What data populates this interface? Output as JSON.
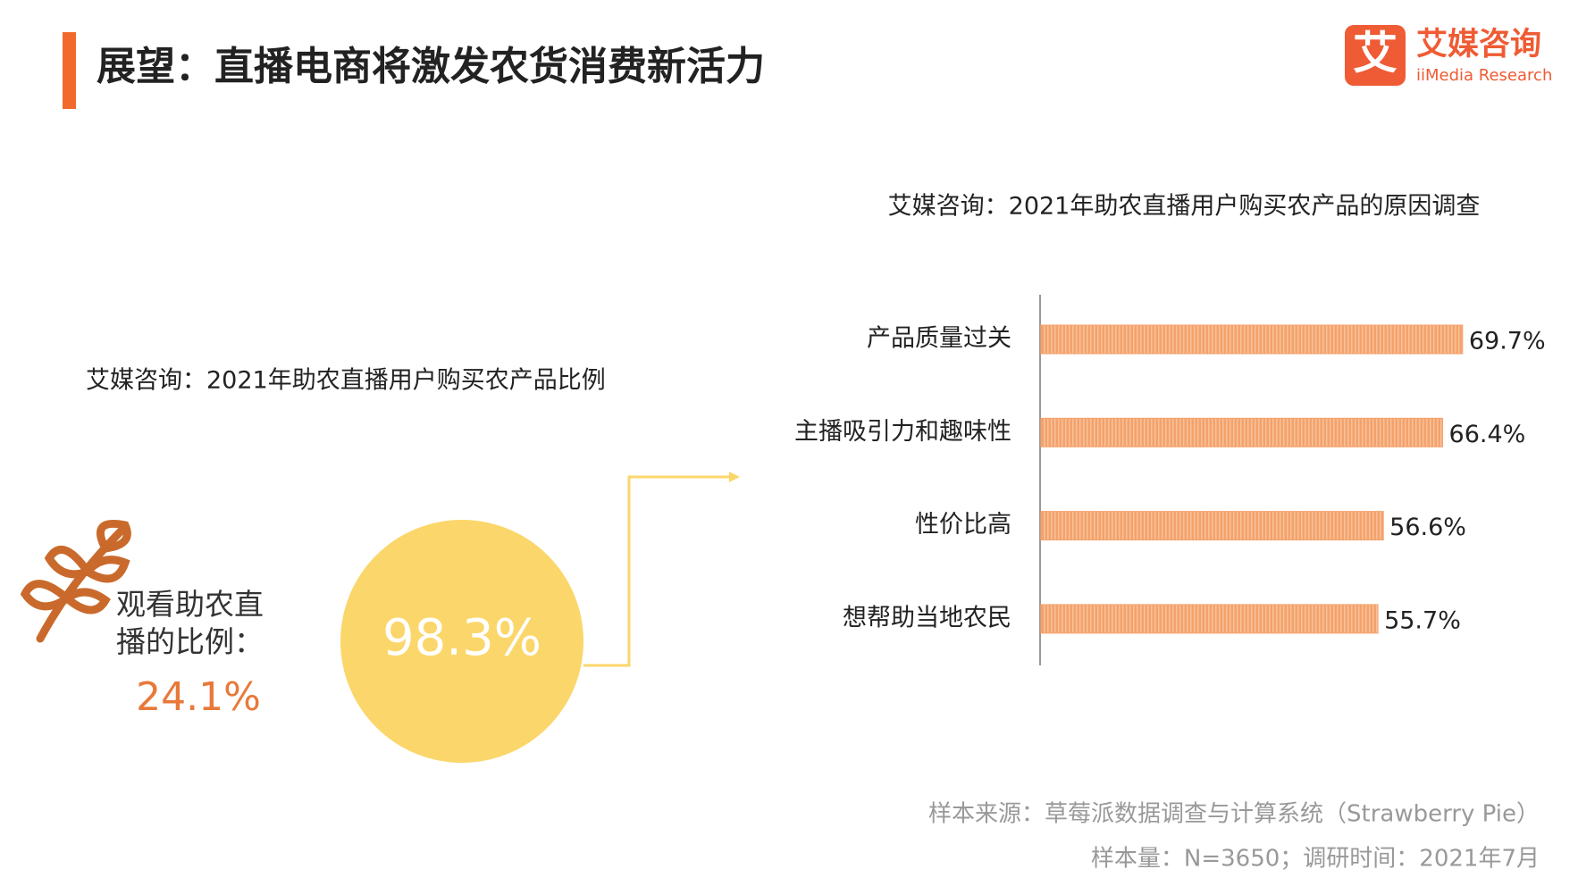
{
  "header": {
    "title": "展望：直播电商将激发农货消费新活力",
    "logo_mark": "艾",
    "logo_name": "艾媒咨询",
    "logo_sub": "iiMedia Research"
  },
  "left_panel": {
    "title": "艾媒咨询：2021年助农直播用户购买农产品比例",
    "watch_label": "观看助农直播的比例：",
    "watch_share": "24.1%",
    "buy_share": "98.3%"
  },
  "chart_data": {
    "type": "bar",
    "orientation": "horizontal",
    "title": "艾媒咨询：2021年助农直播用户购买农产品的原因调查",
    "categories": [
      "产品质量过关",
      "主播吸引力和趣味性",
      "性价比高",
      "想帮助当地农民"
    ],
    "values": [
      69.7,
      66.4,
      56.6,
      55.7
    ],
    "value_labels": [
      "69.7%",
      "66.4%",
      "56.6%",
      "55.7%"
    ],
    "color": "#f4a26b"
  },
  "footer": {
    "source": "样本来源：草莓派数据调查与计算系统（Strawberry Pie）",
    "sample": "样本量：N=3650；调研时间：2021年7月"
  }
}
